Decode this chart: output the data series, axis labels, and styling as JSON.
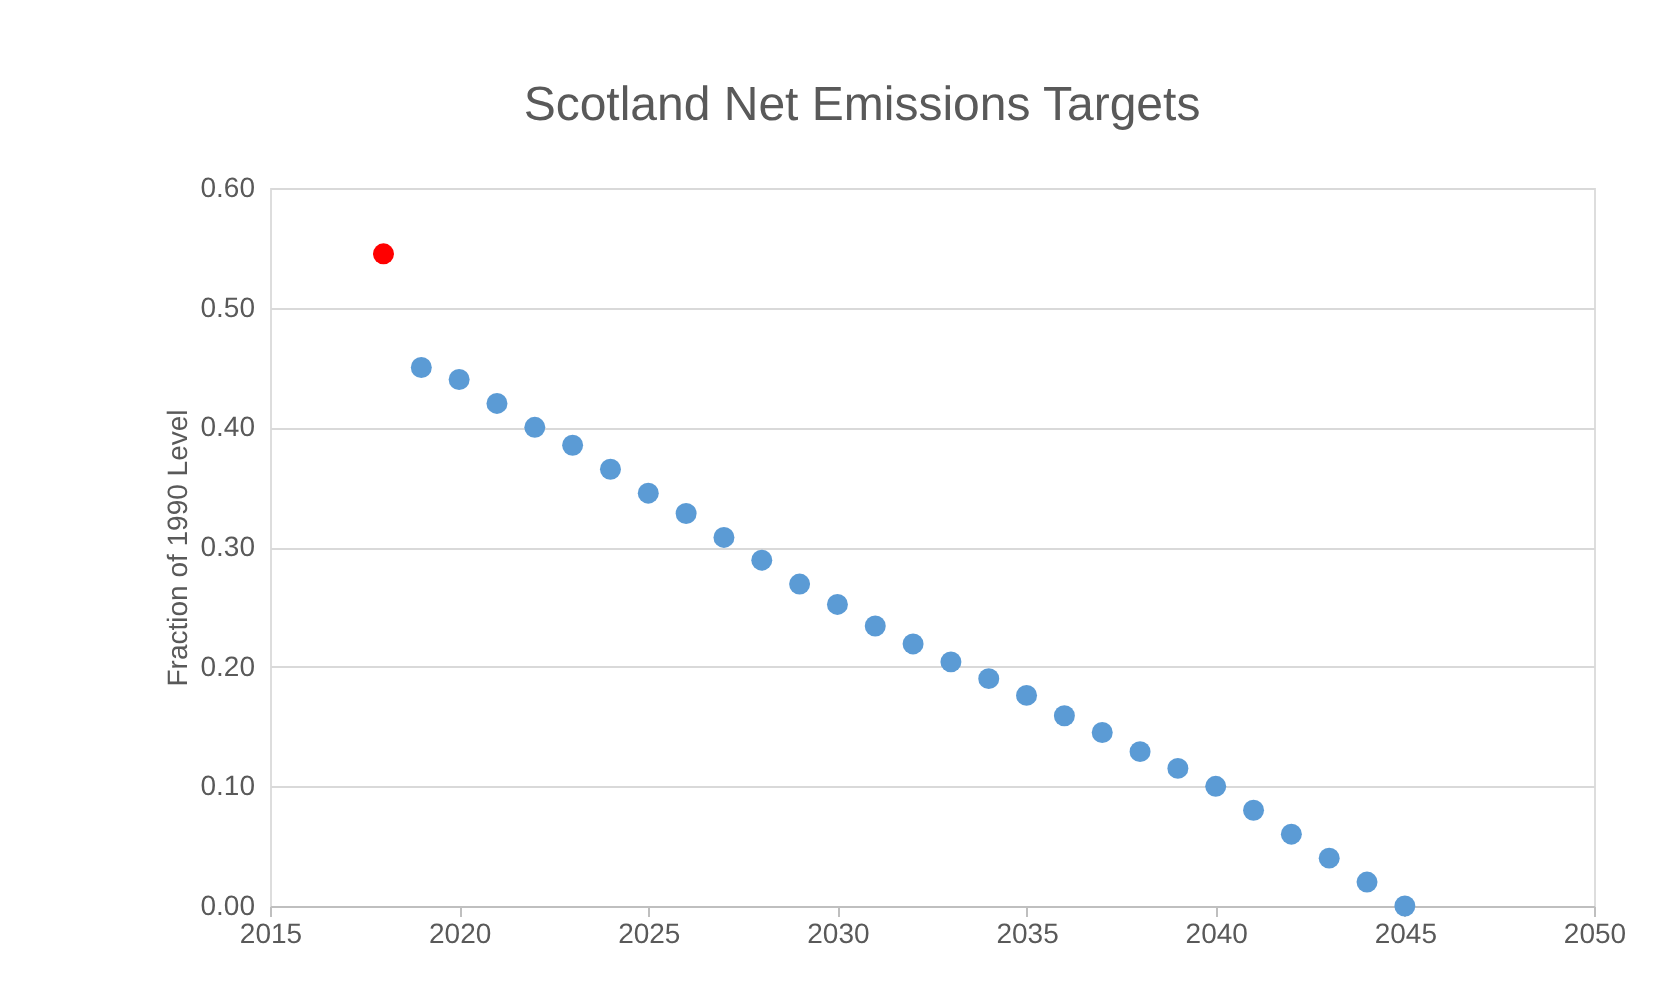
{
  "chart_data": {
    "type": "scatter",
    "title": "Scotland Net Emissions Targets",
    "ylabel": "Fraction of 1990 Level",
    "series": [
      {
        "color": "#ff0000",
        "x": [
          2018
        ],
        "values": [
          0.545
        ]
      },
      {
        "color": "#5b9bd5",
        "x": [
          2019,
          2020,
          2021,
          2022,
          2023,
          2024,
          2025,
          2026,
          2027,
          2028,
          2029,
          2030,
          2031,
          2032,
          2033,
          2034,
          2035,
          2036,
          2037,
          2038,
          2039,
          2040,
          2041,
          2042,
          2043,
          2044,
          2045
        ],
        "values": [
          0.45,
          0.44,
          0.42,
          0.4,
          0.385,
          0.365,
          0.345,
          0.328,
          0.308,
          0.289,
          0.269,
          0.252,
          0.234,
          0.219,
          0.204,
          0.19,
          0.176,
          0.159,
          0.145,
          0.129,
          0.115,
          0.1,
          0.08,
          0.06,
          0.04,
          0.02,
          0.0
        ]
      }
    ],
    "xlim": [
      2015,
      2050
    ],
    "xticks": [
      2015,
      2020,
      2025,
      2030,
      2035,
      2040,
      2045,
      2050
    ],
    "ylim": [
      0,
      0.6
    ],
    "yticks": [
      {
        "value": 0,
        "label": "0.00"
      },
      {
        "value": 0.1,
        "label": "0.10"
      },
      {
        "value": 0.2,
        "label": "0.20"
      },
      {
        "value": 0.3,
        "label": "0.30"
      },
      {
        "value": 0.4,
        "label": "0.40"
      },
      {
        "value": 0.5,
        "label": "0.50"
      },
      {
        "value": 0.6,
        "label": "0.60"
      }
    ],
    "grid": "y",
    "marker": "circle"
  }
}
